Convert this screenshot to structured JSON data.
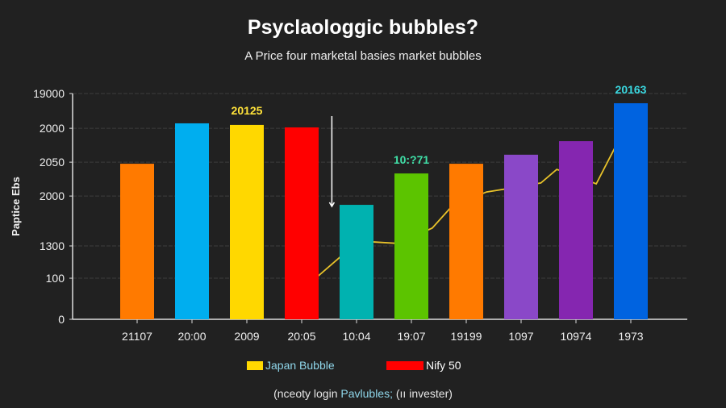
{
  "title": "Psyclaologgic bubbles?",
  "subtitle": "A Price four marketal basies market bubbles",
  "footnote": {
    "pre": "(nceoty login ",
    "highlight": "Pavlubles;",
    "post": " (ıı invester)"
  },
  "chart_data": {
    "type": "bar",
    "title": "Psyclaologgic bubbles?",
    "ylabel": "Paptice Ebs",
    "xlabel": "",
    "grid": true,
    "value_scale": "fraction of y-axis height (top tick = 1)",
    "yticks": [
      {
        "label": "19000",
        "level": 1.0
      },
      {
        "label": "2000",
        "level": 0.846
      },
      {
        "label": "2050",
        "level": 0.696
      },
      {
        "label": "2000",
        "level": 0.546
      },
      {
        "label": "1300",
        "level": 0.325
      },
      {
        "label": "100",
        "level": 0.182
      },
      {
        "label": "0",
        "level": 0
      }
    ],
    "categories": [
      "21107",
      "20:00",
      "2009",
      "20:05",
      "10:04",
      "19:07",
      "19199",
      "1097",
      "10974",
      "1973"
    ],
    "values": [
      0.689,
      0.868,
      0.861,
      0.85,
      0.507,
      0.646,
      0.689,
      0.729,
      0.789,
      0.957
    ],
    "colors": [
      "#ff7a00",
      "#00aeef",
      "#ffd800",
      "#ff0000",
      "#00b2b0",
      "#5cc400",
      "#ff7a00",
      "#8a48c8",
      "#8526b0",
      "#0063e0"
    ],
    "line": {
      "color": "#e8c22a",
      "points": [
        [
          3.24,
          0.179
        ],
        [
          3.73,
          0.282
        ],
        [
          4.28,
          0.343
        ],
        [
          4.76,
          0.336
        ],
        [
          5.38,
          0.404
        ],
        [
          5.75,
          0.504
        ],
        [
          6.37,
          0.564
        ],
        [
          6.76,
          0.579
        ],
        [
          7.36,
          0.604
        ],
        [
          7.65,
          0.664
        ],
        [
          7.78,
          0.654
        ],
        [
          8.37,
          0.6
        ],
        [
          8.75,
          0.779
        ]
      ]
    },
    "annotations": [
      {
        "text": "20125",
        "category": 2,
        "color": "#ffe23a"
      },
      {
        "text": "10:?71",
        "category": 5,
        "color": "#3fe0a8"
      },
      {
        "text": "20163",
        "category": 9,
        "color": "#3ad8e0"
      }
    ],
    "arrow": {
      "category": 3.55,
      "from": 0.9,
      "to": 0.5,
      "color": "#ffffff"
    },
    "legend": {
      "placement": "bottom",
      "entries": [
        {
          "name": "Japan Bubble",
          "color": "#ffd800"
        },
        {
          "name": "Nify 50",
          "color": "#ff0000"
        }
      ]
    }
  }
}
